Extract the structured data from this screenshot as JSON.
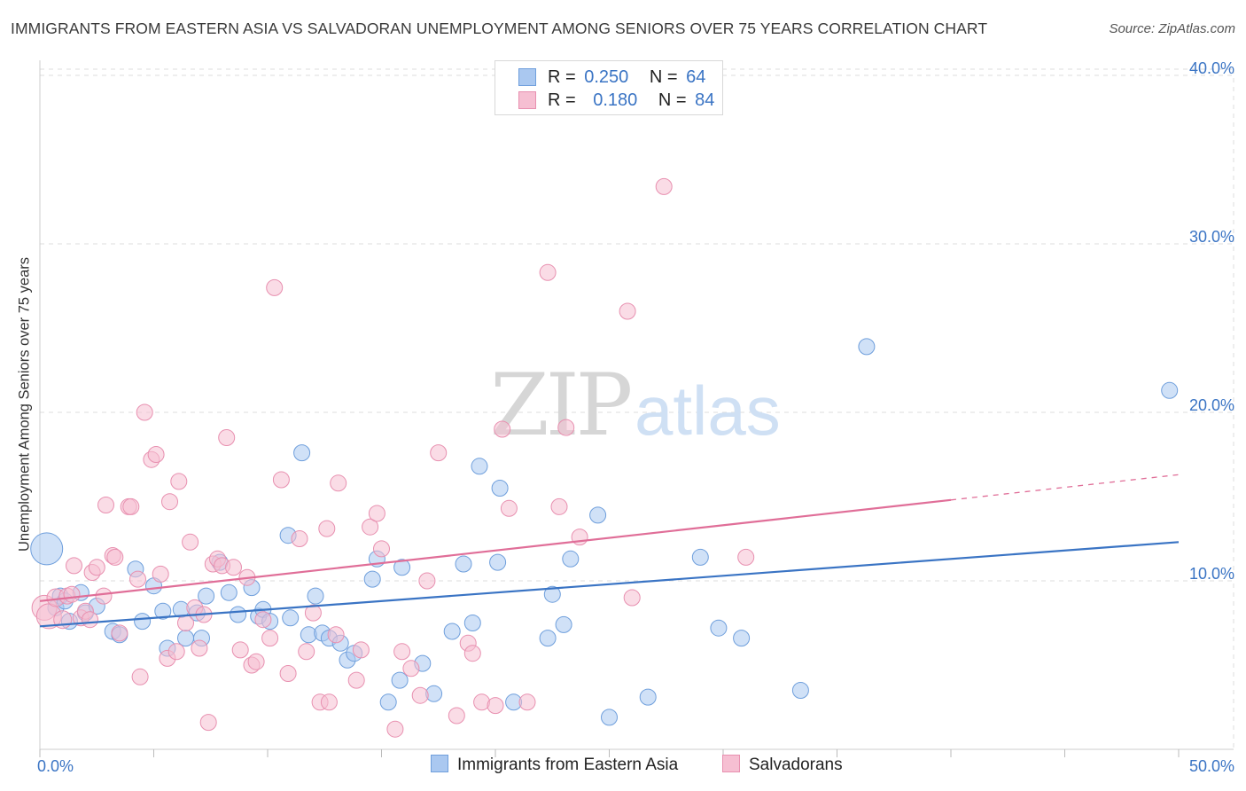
{
  "title": "IMMIGRANTS FROM EASTERN ASIA VS SALVADORAN UNEMPLOYMENT AMONG SENIORS OVER 75 YEARS CORRELATION CHART",
  "source": "Source: ZipAtlas.com",
  "watermark": {
    "zip": "ZIP",
    "atlas": "atlas"
  },
  "legend_top": [
    {
      "r_label": "R =",
      "r_value": "0.250",
      "n_label": "N =",
      "n_value": "64"
    },
    {
      "r_label": "R =",
      "r_value": "0.180",
      "n_label": "N =",
      "n_value": "84"
    }
  ],
  "legend_bottom": [
    "Immigrants from Eastern Asia",
    "Salvadorans"
  ],
  "colors": {
    "blue_fill": "#aac8f0",
    "blue_stroke": "#6f9fdc",
    "blue_line": "#3a74c4",
    "pink_fill": "#f6bfd2",
    "pink_stroke": "#e890b0",
    "pink_line": "#e06e98",
    "axis_label": "#3a74c4",
    "grid": "#dddddd"
  },
  "chart_data": {
    "type": "scatter",
    "title": "IMMIGRANTS FROM EASTERN ASIA VS SALVADORAN UNEMPLOYMENT AMONG SENIORS OVER 75 YEARS CORRELATION CHART",
    "xlabel": "",
    "ylabel": "Unemployment Among Seniors over 75 years",
    "xlim": [
      0,
      50
    ],
    "ylim": [
      0,
      40
    ],
    "x_tick_labels": [
      "0.0%",
      "50.0%"
    ],
    "y_ticks": [
      10,
      20,
      30,
      40
    ],
    "y_tick_labels": [
      "10.0%",
      "20.0%",
      "30.0%",
      "40.0%"
    ],
    "grid": true,
    "legend_position": "top-center",
    "series": [
      {
        "name": "Immigrants from Eastern Asia",
        "R": 0.25,
        "N": 64,
        "trend": {
          "x": [
            0,
            50
          ],
          "y": [
            7.3,
            12.3
          ],
          "dashed_from": null
        },
        "points": [
          [
            0.3,
            11.9,
            18
          ],
          [
            0.7,
            8.4,
            9
          ],
          [
            0.9,
            9.1,
            9
          ],
          [
            1.1,
            8.8,
            9
          ],
          [
            1.3,
            7.6,
            9
          ],
          [
            1.8,
            9.3,
            9
          ],
          [
            2.0,
            8.1,
            9
          ],
          [
            2.5,
            8.5,
            9
          ],
          [
            3.2,
            7.0,
            9
          ],
          [
            3.5,
            6.8,
            9
          ],
          [
            4.2,
            10.7,
            9
          ],
          [
            4.5,
            7.6,
            9
          ],
          [
            5.0,
            9.7,
            9
          ],
          [
            5.4,
            8.2,
            9
          ],
          [
            5.6,
            6.0,
            9
          ],
          [
            6.2,
            8.3,
            9
          ],
          [
            6.4,
            6.6,
            9
          ],
          [
            6.9,
            8.1,
            9
          ],
          [
            7.1,
            6.6,
            9
          ],
          [
            7.3,
            9.1,
            9
          ],
          [
            7.9,
            11.1,
            9
          ],
          [
            8.3,
            9.3,
            9
          ],
          [
            8.7,
            8.0,
            9
          ],
          [
            9.3,
            9.6,
            9
          ],
          [
            9.6,
            7.9,
            9
          ],
          [
            9.8,
            8.3,
            9
          ],
          [
            10.1,
            7.6,
            9
          ],
          [
            10.9,
            12.7,
            9
          ],
          [
            11.0,
            7.8,
            9
          ],
          [
            11.5,
            17.6,
            9
          ],
          [
            11.8,
            6.8,
            9
          ],
          [
            12.1,
            9.1,
            9
          ],
          [
            12.4,
            6.9,
            9
          ],
          [
            12.7,
            6.6,
            9
          ],
          [
            13.2,
            6.3,
            9
          ],
          [
            13.5,
            5.3,
            9
          ],
          [
            13.8,
            5.7,
            9
          ],
          [
            14.6,
            10.1,
            9
          ],
          [
            14.8,
            11.3,
            9
          ],
          [
            15.3,
            2.8,
            9
          ],
          [
            15.8,
            4.1,
            9
          ],
          [
            15.9,
            10.8,
            9
          ],
          [
            16.8,
            5.1,
            9
          ],
          [
            17.3,
            3.3,
            9
          ],
          [
            18.1,
            7.0,
            9
          ],
          [
            18.6,
            11.0,
            9
          ],
          [
            19.0,
            7.5,
            9
          ],
          [
            19.3,
            16.8,
            9
          ],
          [
            20.1,
            11.1,
            9
          ],
          [
            20.2,
            15.5,
            9
          ],
          [
            20.8,
            2.8,
            9
          ],
          [
            22.3,
            6.6,
            9
          ],
          [
            22.5,
            9.2,
            9
          ],
          [
            23.0,
            7.4,
            9
          ],
          [
            23.3,
            11.3,
            9
          ],
          [
            24.5,
            13.9,
            9
          ],
          [
            25.0,
            1.9,
            9
          ],
          [
            26.7,
            3.1,
            9
          ],
          [
            29.0,
            11.4,
            9
          ],
          [
            29.8,
            7.2,
            9
          ],
          [
            30.8,
            6.6,
            9
          ],
          [
            33.4,
            3.5,
            9
          ],
          [
            36.3,
            23.9,
            9
          ],
          [
            49.6,
            21.3,
            9
          ]
        ]
      },
      {
        "name": "Salvadorans",
        "R": 0.18,
        "N": 84,
        "trend": {
          "x": [
            0,
            50
          ],
          "y": [
            8.8,
            16.3
          ],
          "dashed_from": 40
        },
        "points": [
          [
            0.2,
            8.4,
            14
          ],
          [
            0.4,
            7.9,
            14
          ],
          [
            0.7,
            9.0,
            10
          ],
          [
            1.0,
            7.7,
            10
          ],
          [
            1.2,
            9.1,
            9
          ],
          [
            1.4,
            9.2,
            9
          ],
          [
            1.5,
            10.9,
            9
          ],
          [
            1.8,
            7.8,
            9
          ],
          [
            2.0,
            8.2,
            9
          ],
          [
            2.2,
            7.7,
            9
          ],
          [
            2.3,
            10.5,
            9
          ],
          [
            2.5,
            10.8,
            9
          ],
          [
            2.8,
            9.1,
            9
          ],
          [
            2.9,
            14.5,
            9
          ],
          [
            3.2,
            11.5,
            9
          ],
          [
            3.3,
            11.4,
            9
          ],
          [
            3.5,
            6.9,
            9
          ],
          [
            3.9,
            14.4,
            9
          ],
          [
            4.0,
            14.4,
            9
          ],
          [
            4.3,
            10.1,
            9
          ],
          [
            4.4,
            4.3,
            9
          ],
          [
            4.6,
            20.0,
            9
          ],
          [
            4.9,
            17.2,
            9
          ],
          [
            5.1,
            17.5,
            9
          ],
          [
            5.3,
            10.4,
            9
          ],
          [
            5.6,
            5.4,
            9
          ],
          [
            5.7,
            14.7,
            9
          ],
          [
            6.0,
            5.8,
            9
          ],
          [
            6.1,
            15.9,
            9
          ],
          [
            6.4,
            7.5,
            9
          ],
          [
            6.6,
            12.3,
            9
          ],
          [
            6.8,
            8.4,
            9
          ],
          [
            7.0,
            6.0,
            9
          ],
          [
            7.2,
            8.0,
            9
          ],
          [
            7.4,
            1.6,
            9
          ],
          [
            7.6,
            11.0,
            9
          ],
          [
            7.8,
            11.3,
            9
          ],
          [
            8.0,
            10.9,
            9
          ],
          [
            8.2,
            18.5,
            9
          ],
          [
            8.5,
            10.8,
            9
          ],
          [
            8.8,
            5.9,
            9
          ],
          [
            9.1,
            10.2,
            9
          ],
          [
            9.3,
            5.0,
            9
          ],
          [
            9.5,
            5.2,
            9
          ],
          [
            9.8,
            7.7,
            9
          ],
          [
            10.1,
            6.6,
            9
          ],
          [
            10.3,
            27.4,
            9
          ],
          [
            10.6,
            16.0,
            9
          ],
          [
            10.9,
            4.5,
            9
          ],
          [
            11.4,
            12.5,
            9
          ],
          [
            11.7,
            5.8,
            9
          ],
          [
            12.0,
            8.1,
            9
          ],
          [
            12.3,
            2.8,
            9
          ],
          [
            12.6,
            13.1,
            9
          ],
          [
            12.7,
            2.8,
            9
          ],
          [
            13.0,
            6.8,
            9
          ],
          [
            13.1,
            15.8,
            9
          ],
          [
            13.9,
            4.1,
            9
          ],
          [
            14.1,
            5.9,
            9
          ],
          [
            14.5,
            13.2,
            9
          ],
          [
            14.8,
            14.0,
            9
          ],
          [
            15.0,
            11.9,
            9
          ],
          [
            15.6,
            1.2,
            9
          ],
          [
            15.9,
            5.8,
            9
          ],
          [
            16.3,
            4.8,
            9
          ],
          [
            16.7,
            3.2,
            9
          ],
          [
            17.0,
            10.0,
            9
          ],
          [
            17.5,
            17.6,
            9
          ],
          [
            18.3,
            2.0,
            9
          ],
          [
            18.8,
            6.3,
            9
          ],
          [
            19.0,
            5.7,
            9
          ],
          [
            19.4,
            2.8,
            9
          ],
          [
            20.0,
            2.6,
            9
          ],
          [
            20.3,
            19.0,
            9
          ],
          [
            20.6,
            14.3,
            9
          ],
          [
            21.4,
            2.8,
            9
          ],
          [
            22.3,
            28.3,
            9
          ],
          [
            22.8,
            14.4,
            9
          ],
          [
            23.1,
            19.1,
            9
          ],
          [
            23.7,
            12.6,
            9
          ],
          [
            25.8,
            26.0,
            9
          ],
          [
            26.0,
            9.0,
            9
          ],
          [
            27.4,
            33.4,
            9
          ],
          [
            31.0,
            11.4,
            9
          ]
        ]
      }
    ]
  }
}
